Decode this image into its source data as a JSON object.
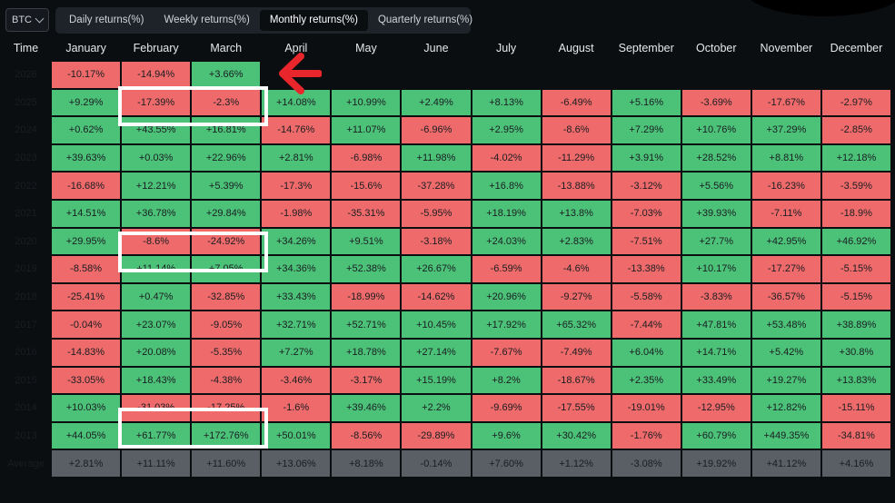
{
  "asset_select": {
    "value": "BTC"
  },
  "tabs": [
    {
      "label": "Daily returns(%)",
      "active": false
    },
    {
      "label": "Weekly returns(%)",
      "active": false
    },
    {
      "label": "Monthly returns(%)",
      "active": true
    },
    {
      "label": "Quarterly returns(%)",
      "active": false
    }
  ],
  "table": {
    "time_header": "Time",
    "months": [
      "January",
      "February",
      "March",
      "April",
      "May",
      "June",
      "July",
      "August",
      "September",
      "October",
      "November",
      "December"
    ],
    "rows": [
      {
        "year": "2026",
        "values": [
          "-10.17%",
          "-14.94%",
          "+3.66%",
          "",
          "",
          "",
          "",
          "",
          "",
          "",
          "",
          ""
        ]
      },
      {
        "year": "2025",
        "values": [
          "+9.29%",
          "-17.39%",
          "-2.3%",
          "+14.08%",
          "+10.99%",
          "+2.49%",
          "+8.13%",
          "-6.49%",
          "+5.16%",
          "-3.69%",
          "-17.67%",
          "-2.97%"
        ]
      },
      {
        "year": "2024",
        "values": [
          "+0.62%",
          "+43.55%",
          "+16.81%",
          "-14.76%",
          "+11.07%",
          "-6.96%",
          "+2.95%",
          "-8.6%",
          "+7.29%",
          "+10.76%",
          "+37.29%",
          "-2.85%"
        ]
      },
      {
        "year": "2023",
        "values": [
          "+39.63%",
          "+0.03%",
          "+22.96%",
          "+2.81%",
          "-6.98%",
          "+11.98%",
          "-4.02%",
          "-11.29%",
          "+3.91%",
          "+28.52%",
          "+8.81%",
          "+12.18%"
        ]
      },
      {
        "year": "2022",
        "values": [
          "-16.68%",
          "+12.21%",
          "+5.39%",
          "-17.3%",
          "-15.6%",
          "-37.28%",
          "+16.8%",
          "-13.88%",
          "-3.12%",
          "+5.56%",
          "-16.23%",
          "-3.59%"
        ]
      },
      {
        "year": "2021",
        "values": [
          "+14.51%",
          "+36.78%",
          "+29.84%",
          "-1.98%",
          "-35.31%",
          "-5.95%",
          "+18.19%",
          "+13.8%",
          "-7.03%",
          "+39.93%",
          "-7.11%",
          "-18.9%"
        ]
      },
      {
        "year": "2020",
        "values": [
          "+29.95%",
          "-8.6%",
          "-24.92%",
          "+34.26%",
          "+9.51%",
          "-3.18%",
          "+24.03%",
          "+2.83%",
          "-7.51%",
          "+27.7%",
          "+42.95%",
          "+46.92%"
        ]
      },
      {
        "year": "2019",
        "values": [
          "-8.58%",
          "+11.14%",
          "+7.05%",
          "+34.36%",
          "+52.38%",
          "+26.67%",
          "-6.59%",
          "-4.6%",
          "-13.38%",
          "+10.17%",
          "-17.27%",
          "-5.15%"
        ]
      },
      {
        "year": "2018",
        "values": [
          "-25.41%",
          "+0.47%",
          "-32.85%",
          "+33.43%",
          "-18.99%",
          "-14.62%",
          "+20.96%",
          "-9.27%",
          "-5.58%",
          "-3.83%",
          "-36.57%",
          "-5.15%"
        ]
      },
      {
        "year": "2017",
        "values": [
          "-0.04%",
          "+23.07%",
          "-9.05%",
          "+32.71%",
          "+52.71%",
          "+10.45%",
          "+17.92%",
          "+65.32%",
          "-7.44%",
          "+47.81%",
          "+53.48%",
          "+38.89%"
        ]
      },
      {
        "year": "2016",
        "values": [
          "-14.83%",
          "+20.08%",
          "-5.35%",
          "+7.27%",
          "+18.78%",
          "+27.14%",
          "-7.67%",
          "-7.49%",
          "+6.04%",
          "+14.71%",
          "+5.42%",
          "+30.8%"
        ]
      },
      {
        "year": "2015",
        "values": [
          "-33.05%",
          "+18.43%",
          "-4.38%",
          "-3.46%",
          "-3.17%",
          "+15.19%",
          "+8.2%",
          "-18.67%",
          "+2.35%",
          "+33.49%",
          "+19.27%",
          "+13.83%"
        ]
      },
      {
        "year": "2014",
        "values": [
          "+10.03%",
          "-31.03%",
          "-17.25%",
          "-1.6%",
          "+39.46%",
          "+2.2%",
          "-9.69%",
          "-17.55%",
          "-19.01%",
          "-12.95%",
          "+12.82%",
          "-15.11%"
        ]
      },
      {
        "year": "2013",
        "values": [
          "+44.05%",
          "+61.77%",
          "+172.76%",
          "+50.01%",
          "-8.56%",
          "-29.89%",
          "+9.6%",
          "+30.42%",
          "-1.76%",
          "+60.79%",
          "+449.35%",
          "-34.81%"
        ]
      }
    ],
    "average": {
      "label": "Average",
      "values": [
        "+2.81%",
        "+11.11%",
        "+11.60%",
        "+13.06%",
        "+8.18%",
        "-0.14%",
        "+7.60%",
        "+1.12%",
        "-3.08%",
        "+19.92%",
        "+41.12%",
        "+4.16%"
      ]
    }
  },
  "colors": {
    "positive": "#4cc279",
    "negative": "#ef6b6b",
    "average": "#5a5e65",
    "annotation_arrow": "#e8262b",
    "annotation_box": "#ffffff"
  }
}
